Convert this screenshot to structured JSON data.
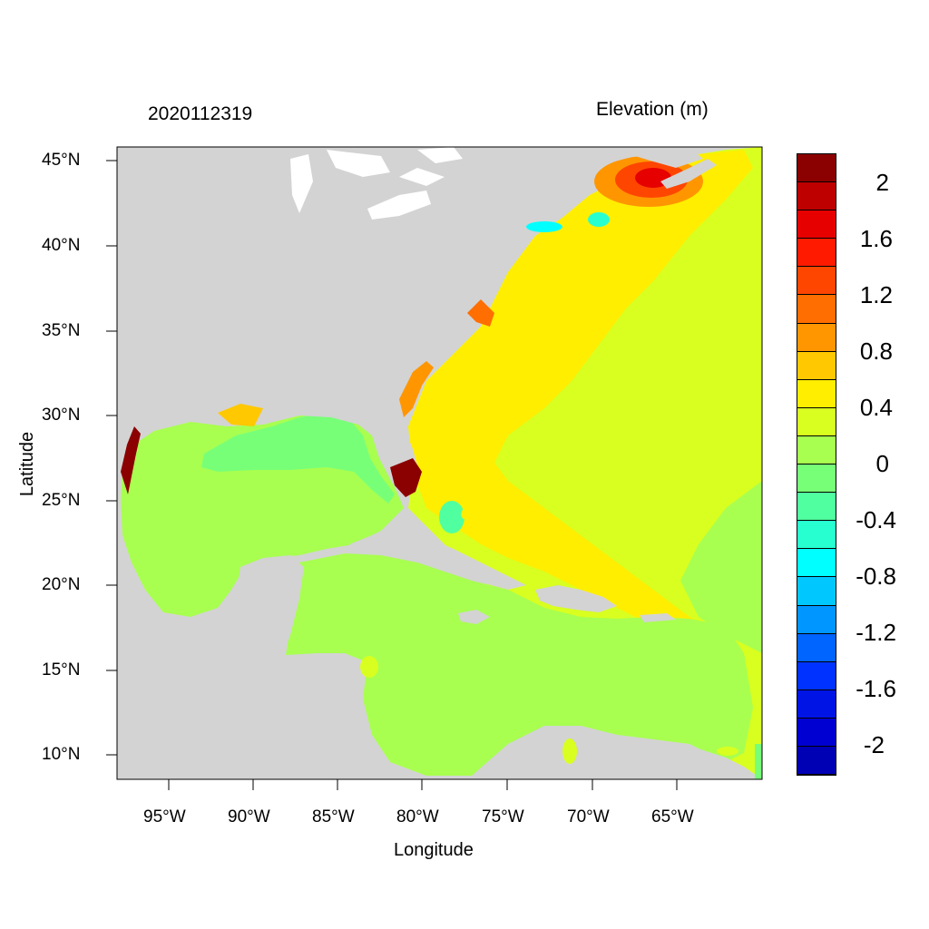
{
  "map": {
    "timestamp": "2020112319",
    "variable_title": "Elevation (m)",
    "xlabel": "Longitude",
    "ylabel": "Latitude",
    "lon_ticks": [
      "95°W",
      "90°W",
      "85°W",
      "80°W",
      "75°W",
      "70°W",
      "65°W"
    ],
    "lat_ticks": [
      "45°N",
      "40°N",
      "35°N",
      "30°N",
      "25°N",
      "20°N",
      "15°N",
      "10°N"
    ],
    "land_color": "#d3d3d3",
    "lake_color": "#ffffff"
  },
  "colorbar": {
    "labels": [
      "2",
      "1.6",
      "1.2",
      "0.8",
      "0.4",
      "0",
      "-0.4",
      "-0.8",
      "-1.2",
      "-1.6",
      "-2"
    ],
    "colors": [
      "#8b0000",
      "#be0000",
      "#e60000",
      "#ff1a00",
      "#ff4600",
      "#ff6e00",
      "#ff9600",
      "#ffc800",
      "#ffee00",
      "#d8ff20",
      "#a8ff50",
      "#78ff78",
      "#50ffa0",
      "#28ffd0",
      "#00ffff",
      "#00c8ff",
      "#0096ff",
      "#0064ff",
      "#0032ff",
      "#0014e6",
      "#0000d2",
      "#0000b4"
    ]
  }
}
